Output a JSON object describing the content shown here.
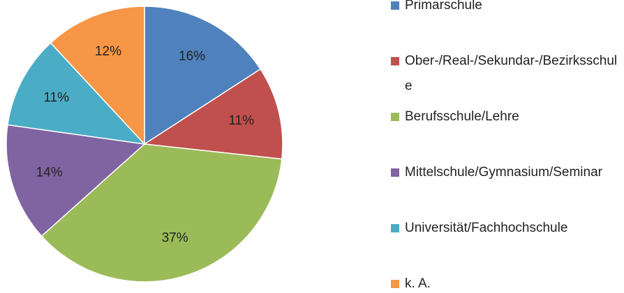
{
  "chart_data": {
    "type": "pie",
    "categories": [
      "Primarschule",
      "Ober-/Real-/Sekundar-/Bezirksschule",
      "Berufsschule/Lehre",
      "Mittelschule/Gymnasium/Seminar",
      "Universität/Fachhochschule",
      "k. A."
    ],
    "values": [
      16,
      11,
      37,
      14,
      11,
      12
    ],
    "value_labels": [
      "16%",
      "11%",
      "37%",
      "14%",
      "11%",
      "12%"
    ],
    "colors": [
      "#4f81bd",
      "#c0504d",
      "#9bbb59",
      "#8064a2",
      "#4bacc6",
      "#f79646"
    ]
  }
}
